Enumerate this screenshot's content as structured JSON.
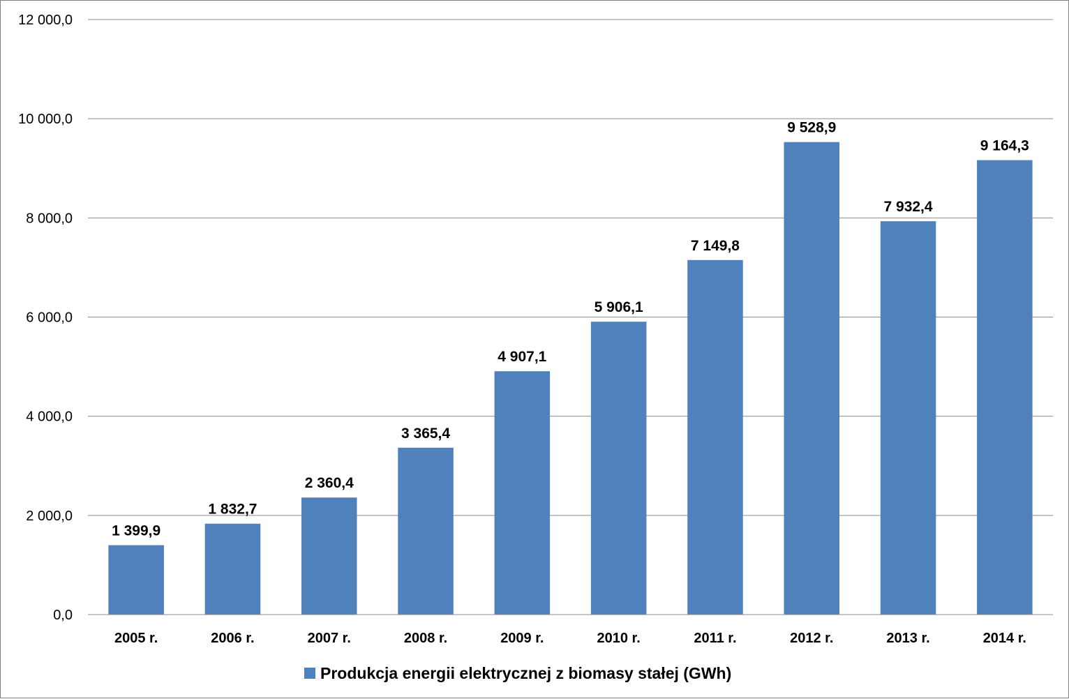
{
  "chart_data": {
    "type": "bar",
    "categories": [
      "2005 r.",
      "2006 r.",
      "2007 r.",
      "2008 r.",
      "2009 r.",
      "2010 r.",
      "2011 r.",
      "2012 r.",
      "2013 r.",
      "2014 r."
    ],
    "series": [
      {
        "name": "Produkcja energii elektrycznej z biomasy stałej (GWh)",
        "values": [
          1399.9,
          1832.7,
          2360.4,
          3365.4,
          4907.1,
          5906.1,
          7149.8,
          9528.9,
          7932.4,
          9164.3
        ],
        "data_labels": [
          "1 399,9",
          "1 832,7",
          "2 360,4",
          "3 365,4",
          "4 907,1",
          "5 906,1",
          "7 149,8",
          "9 528,9",
          "7 932,4",
          "9 164,3"
        ],
        "color": "#4f81bd"
      }
    ],
    "ylim": [
      0,
      12000
    ],
    "yticks": [
      0,
      2000,
      4000,
      6000,
      8000,
      10000,
      12000
    ],
    "ytick_labels": [
      "0,0",
      "2 000,0",
      "4 000,0",
      "6 000,0",
      "8 000,0",
      "10 000,0",
      "12 000,0"
    ],
    "grid": true,
    "legend_position": "bottom",
    "title": "",
    "xlabel": "",
    "ylabel": ""
  }
}
